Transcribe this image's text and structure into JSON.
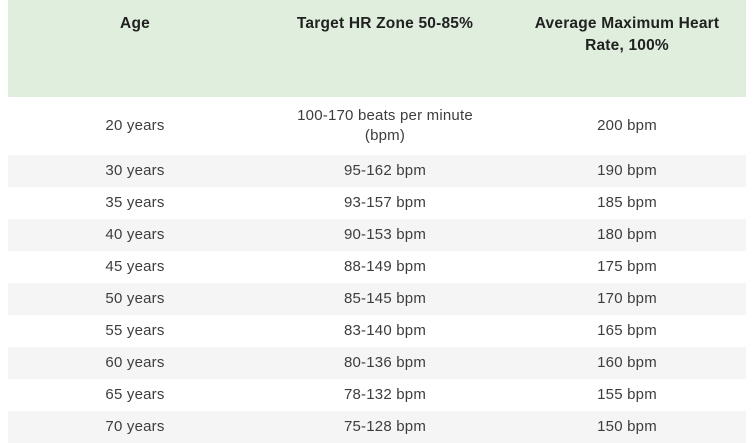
{
  "chart_data": {
    "type": "table",
    "columns": [
      "Age",
      "Target HR Zone 50-85%",
      "Average Maximum Heart Rate, 100%"
    ],
    "rows": [
      [
        "20 years",
        "100-170 beats per minute (bpm)",
        "200 bpm"
      ],
      [
        "30 years",
        "95-162 bpm",
        "190 bpm"
      ],
      [
        "35 years",
        "93-157 bpm",
        "185 bpm"
      ],
      [
        "40 years",
        "90-153 bpm",
        "180 bpm"
      ],
      [
        "45 years",
        "88-149 bpm",
        "175 bpm"
      ],
      [
        "50 years",
        "85-145 bpm",
        "170 bpm"
      ],
      [
        "55 years",
        "83-140 bpm",
        "165 bpm"
      ],
      [
        "60 years",
        "80-136 bpm",
        "160 bpm"
      ],
      [
        "65 years",
        "78-132 bpm",
        "155 bpm"
      ],
      [
        "70 years",
        "75-128 bpm",
        "150 bpm"
      ]
    ]
  },
  "colors": {
    "header_bg": "#dfeedd",
    "row_alt_bg": "#f5f5f5",
    "header_text": "#212121",
    "body_text": "#3d3d3d"
  }
}
